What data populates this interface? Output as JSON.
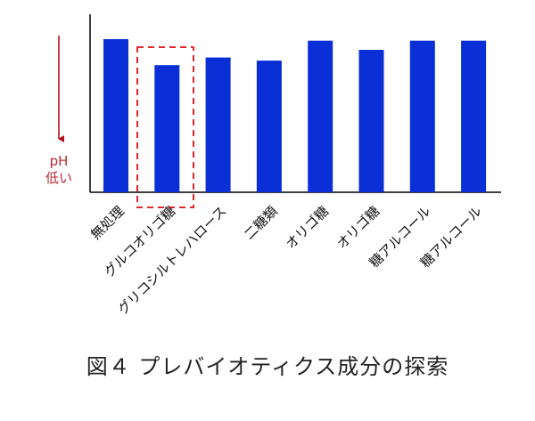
{
  "chart_data": {
    "type": "bar",
    "categories": [
      "無処理",
      "グルコオリゴ糖",
      "グリコシルトレハロース",
      "二糖類",
      "オリゴ糖",
      "オリゴ糖",
      "糖アルコール",
      "糖アルコール"
    ],
    "values": [
      100,
      83,
      88,
      86,
      99,
      93,
      99,
      99
    ],
    "ylim": [
      0,
      100
    ],
    "ylabel_lines": [
      "pH",
      "低い"
    ],
    "y_direction": "down-is-lower-pH",
    "highlighted_category_index": 1,
    "colors": {
      "bar": "#0a2fd6",
      "highlight": "#e0282e",
      "arrow": "#b5121b",
      "axis_label": "#c0272d"
    }
  },
  "caption": "図４ プレバイオティクス成分の探索"
}
